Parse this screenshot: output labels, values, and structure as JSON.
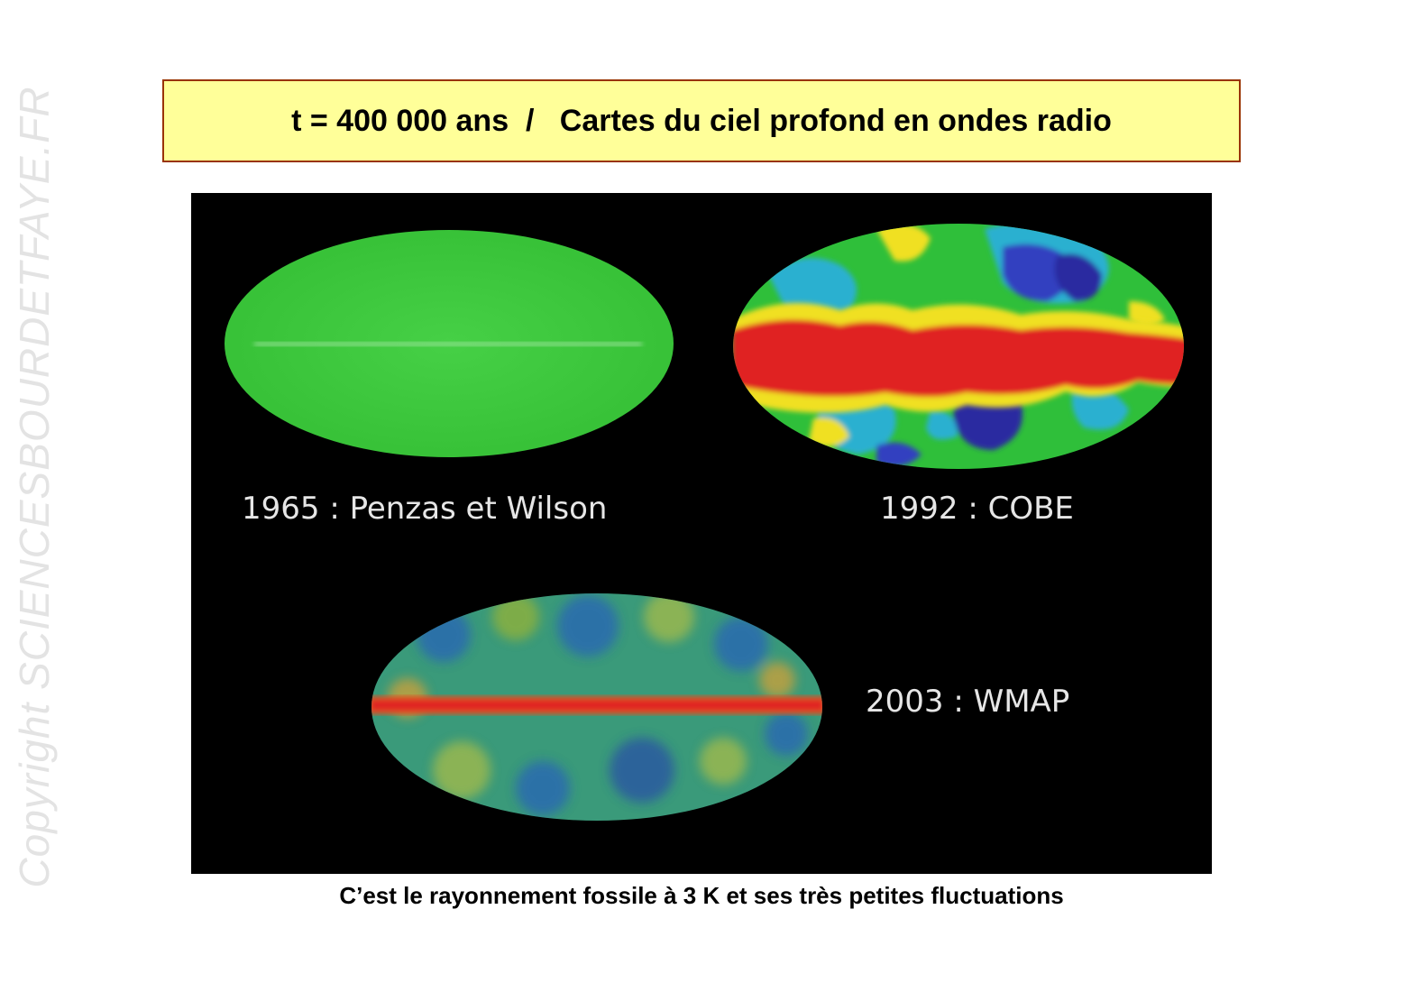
{
  "watermark": "Copyright SCIENCESBOURDETFAYE.FR",
  "title": "t = 400 000 ans  /   Cartes du ciel profond en ondes radio",
  "maps": [
    {
      "label": "1965 : Penzas et Wilson",
      "survey": "Penzias-Wilson",
      "fill": "#3ccc3c"
    },
    {
      "label": "1992 : COBE",
      "survey": "COBE",
      "fill": "#2fbf3a"
    },
    {
      "label": "2003 : WMAP",
      "survey": "WMAP",
      "fill": "#3a9a7a"
    }
  ],
  "caption": "C’est le rayonnement fossile à 3 K et ses très petites fluctuations",
  "colors": {
    "title_bg": "#ffff99",
    "title_border": "#993300",
    "figure_bg": "#000000",
    "band_red": "#e02020",
    "cold_blue": "#2a2aa0",
    "cyan": "#2ab0d0"
  }
}
